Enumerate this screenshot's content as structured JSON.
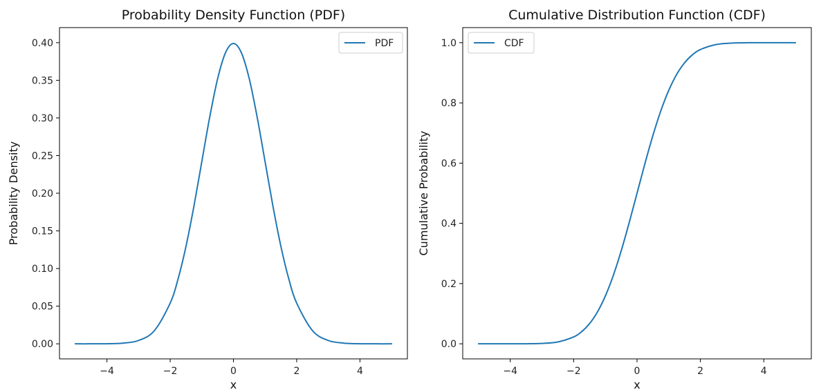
{
  "chart_data": [
    {
      "type": "line",
      "title": "Probability Density Function (PDF)",
      "xlabel": "x",
      "ylabel": "Probability Density",
      "xlim": [
        -5.5,
        5.5
      ],
      "ylim": [
        -0.02,
        0.42
      ],
      "xticks": [
        -4,
        -2,
        0,
        2,
        4
      ],
      "xtick_labels": [
        "−4",
        "−2",
        "0",
        "2",
        "4"
      ],
      "yticks": [
        0.0,
        0.05,
        0.1,
        0.15,
        0.2,
        0.25,
        0.3,
        0.35,
        0.4
      ],
      "ytick_labels": [
        "0.00",
        "0.05",
        "0.10",
        "0.15",
        "0.20",
        "0.25",
        "0.30",
        "0.35",
        "0.40"
      ],
      "legend": "top-right",
      "grid": false,
      "series": [
        {
          "name": "PDF",
          "color": "#1f77b4",
          "x": [
            -5,
            -4.5,
            -4,
            -3.5,
            -3,
            -2.5,
            -2,
            -1.75,
            -1.5,
            -1.25,
            -1,
            -0.75,
            -0.5,
            -0.25,
            0,
            0.25,
            0.5,
            0.75,
            1,
            1.25,
            1.5,
            1.75,
            2,
            2.5,
            3,
            3.5,
            4,
            4.5,
            5
          ],
          "y": [
            0.0,
            0.0,
            0.0001,
            0.0009,
            0.0044,
            0.0175,
            0.054,
            0.0863,
            0.1295,
            0.1826,
            0.242,
            0.3011,
            0.3521,
            0.3867,
            0.3989,
            0.3867,
            0.3521,
            0.3011,
            0.242,
            0.1826,
            0.1295,
            0.0863,
            0.054,
            0.0175,
            0.0044,
            0.0009,
            0.0001,
            0.0,
            0.0
          ]
        }
      ]
    },
    {
      "type": "line",
      "title": "Cumulative Distribution Function (CDF)",
      "xlabel": "x",
      "ylabel": "Cumulative Probability",
      "xlim": [
        -5.5,
        5.5
      ],
      "ylim": [
        -0.05,
        1.05
      ],
      "xticks": [
        -4,
        -2,
        0,
        2,
        4
      ],
      "xtick_labels": [
        "−4",
        "−2",
        "0",
        "2",
        "4"
      ],
      "yticks": [
        0.0,
        0.2,
        0.4,
        0.6,
        0.8,
        1.0
      ],
      "ytick_labels": [
        "0.0",
        "0.2",
        "0.4",
        "0.6",
        "0.8",
        "1.0"
      ],
      "legend": "top-left",
      "grid": false,
      "series": [
        {
          "name": "CDF",
          "color": "#1f77b4",
          "x": [
            -5,
            -4.5,
            -4,
            -3.5,
            -3,
            -2.5,
            -2,
            -1.75,
            -1.5,
            -1.25,
            -1,
            -0.75,
            -0.5,
            -0.25,
            0,
            0.25,
            0.5,
            0.75,
            1,
            1.25,
            1.5,
            1.75,
            2,
            2.5,
            3,
            3.5,
            4,
            4.5,
            5
          ],
          "y": [
            0.0,
            0.0,
            0.0,
            0.0002,
            0.0013,
            0.0062,
            0.0228,
            0.0401,
            0.0668,
            0.1056,
            0.1587,
            0.2266,
            0.3085,
            0.4013,
            0.5,
            0.5987,
            0.6915,
            0.7734,
            0.8413,
            0.8944,
            0.9332,
            0.9599,
            0.9772,
            0.9938,
            0.9987,
            0.9998,
            1.0,
            1.0,
            1.0
          ]
        }
      ]
    }
  ]
}
